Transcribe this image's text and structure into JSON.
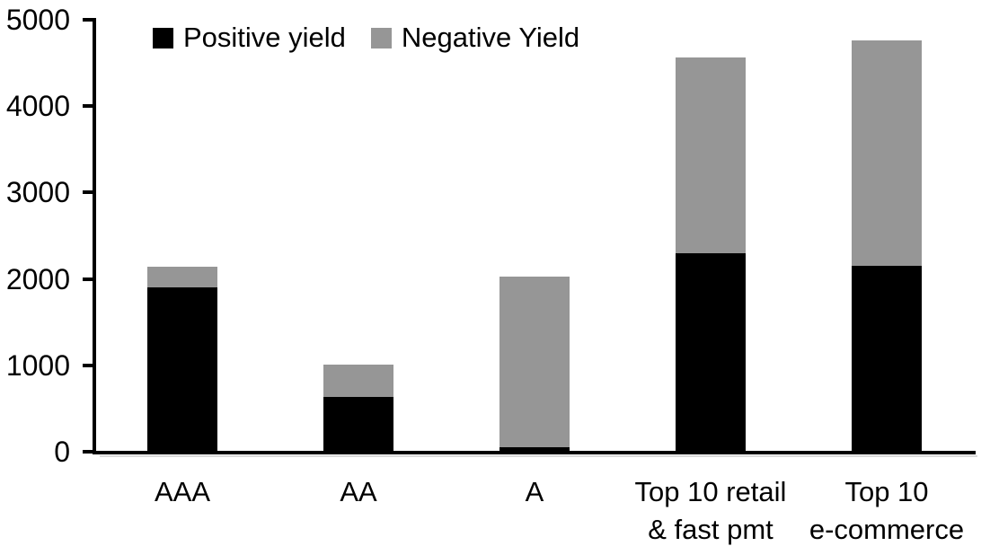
{
  "chart_data": {
    "type": "bar",
    "stacked": true,
    "title": "",
    "categories": [
      "AAA",
      "AA",
      "A",
      "Top 10 retail\n& fast pmt",
      "Top 10\ne-commerce"
    ],
    "series": [
      {
        "name": "Positive yield",
        "color": "#000000",
        "values": [
          1900,
          630,
          50,
          2300,
          2150
        ]
      },
      {
        "name": "Negative Yield",
        "color": "#969696",
        "values": [
          240,
          380,
          1980,
          2260,
          2610
        ]
      }
    ],
    "xlabel": "",
    "ylabel": "",
    "ylim": [
      0,
      5000
    ],
    "yticks": [
      0,
      1000,
      2000,
      3000,
      4000,
      5000
    ],
    "grid": false,
    "legend_position": "top-center",
    "axis_color": "#000000",
    "background_color": "#ffffff"
  }
}
